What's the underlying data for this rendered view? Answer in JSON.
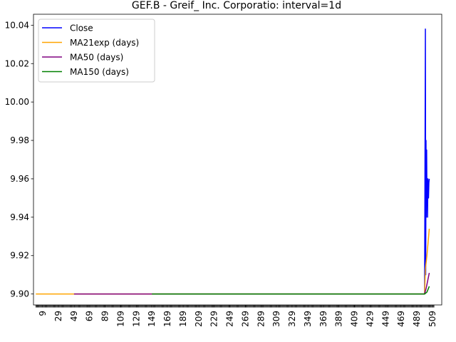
{
  "chart_data": {
    "type": "line",
    "title": "GEF.B - Greif_ Inc. Corporatio: interval=1d",
    "xlabel": "",
    "ylabel": "",
    "xlim": [
      -3,
      521
    ],
    "ylim": [
      9.8943,
      10.0457
    ],
    "yticks": [
      9.9,
      9.92,
      9.94,
      9.96,
      9.98,
      10.0,
      10.02,
      10.04
    ],
    "ytick_labels": [
      "9.90",
      "9.92",
      "9.94",
      "9.96",
      "9.98",
      "10.00",
      "10.02",
      "10.04"
    ],
    "xticks": [
      9,
      29,
      49,
      69,
      89,
      109,
      129,
      149,
      169,
      189,
      209,
      229,
      249,
      269,
      289,
      309,
      329,
      349,
      369,
      389,
      409,
      429,
      449,
      469,
      489,
      509
    ],
    "xtick_labels": [
      "9",
      "29",
      "49",
      "69",
      "89",
      "109",
      "129",
      "149",
      "169",
      "189",
      "209",
      "229",
      "249",
      "269",
      "289",
      "309",
      "329",
      "349",
      "369",
      "389",
      "409",
      "429",
      "449",
      "469",
      "489",
      "509"
    ],
    "grid": false,
    "legend_position": "top-left",
    "series": [
      {
        "name": "Close",
        "color": "#0000ff",
        "x": [
          499,
          500,
          500.4,
          500.8,
          501.2,
          501.6,
          502,
          502.4,
          502.8,
          503.2,
          503.6,
          504,
          504.5,
          505
        ],
        "y": [
          9.9,
          10.038,
          9.91,
          9.98,
          9.94,
          9.975,
          9.95,
          9.96,
          9.94,
          9.96,
          9.955,
          9.95,
          9.958,
          9.96
        ]
      },
      {
        "name": "MA21exp (days)",
        "color": "#ffa500",
        "x": [
          0,
          499,
          500,
          502,
          505
        ],
        "y": [
          9.9,
          9.9,
          9.913,
          9.92,
          9.934
        ]
      },
      {
        "name": "MA50 (days)",
        "color": "#800080",
        "x": [
          49,
          499,
          501,
          505
        ],
        "y": [
          9.9,
          9.9,
          9.903,
          9.911
        ]
      },
      {
        "name": "MA150 (days)",
        "color": "#008000",
        "x": [
          149,
          499,
          502,
          505
        ],
        "y": [
          9.9,
          9.9,
          9.901,
          9.904
        ]
      }
    ]
  }
}
